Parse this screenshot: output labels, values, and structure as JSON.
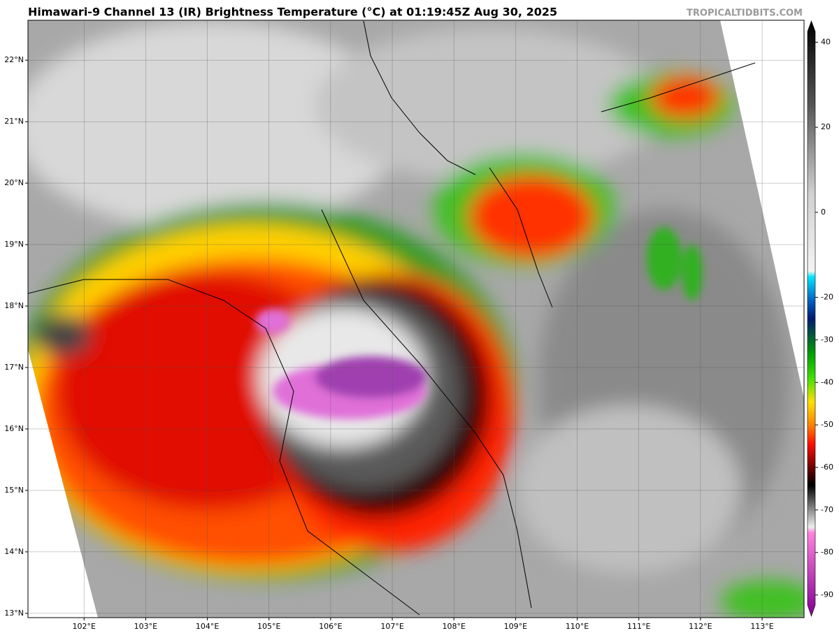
{
  "title": "Himawari-9 Channel 13 (IR) Brightness Temperature (°C) at 01:19:45Z Aug 30, 2025",
  "credit": "TROPICALTIDBITS.COM",
  "map": {
    "lon_range": [
      101.09,
      113.68
    ],
    "lat_range": [
      12.93,
      22.65
    ],
    "lon_ticks": [
      {
        "value": 102,
        "label": "102°E"
      },
      {
        "value": 103,
        "label": "103°E"
      },
      {
        "value": 104,
        "label": "104°E"
      },
      {
        "value": 105,
        "label": "105°E"
      },
      {
        "value": 106,
        "label": "106°E"
      },
      {
        "value": 107,
        "label": "107°E"
      },
      {
        "value": 108,
        "label": "108°E"
      },
      {
        "value": 109,
        "label": "109°E"
      },
      {
        "value": 110,
        "label": "110°E"
      },
      {
        "value": 111,
        "label": "111°E"
      },
      {
        "value": 112,
        "label": "112°E"
      },
      {
        "value": 113,
        "label": "113°E"
      }
    ],
    "lat_ticks": [
      {
        "value": 13,
        "label": "13°N"
      },
      {
        "value": 14,
        "label": "14°N"
      },
      {
        "value": 15,
        "label": "15°N"
      },
      {
        "value": 16,
        "label": "16°N"
      },
      {
        "value": 17,
        "label": "17°N"
      },
      {
        "value": 18,
        "label": "18°N"
      },
      {
        "value": 19,
        "label": "19°N"
      },
      {
        "value": 20,
        "label": "20°N"
      },
      {
        "value": 21,
        "label": "21°N"
      },
      {
        "value": 22,
        "label": "22°N"
      }
    ]
  },
  "colorbar": {
    "range": [
      -95,
      45
    ],
    "ticks": [
      40,
      20,
      0,
      -20,
      -30,
      -40,
      -50,
      -60,
      -70,
      -80,
      -90
    ]
  }
}
